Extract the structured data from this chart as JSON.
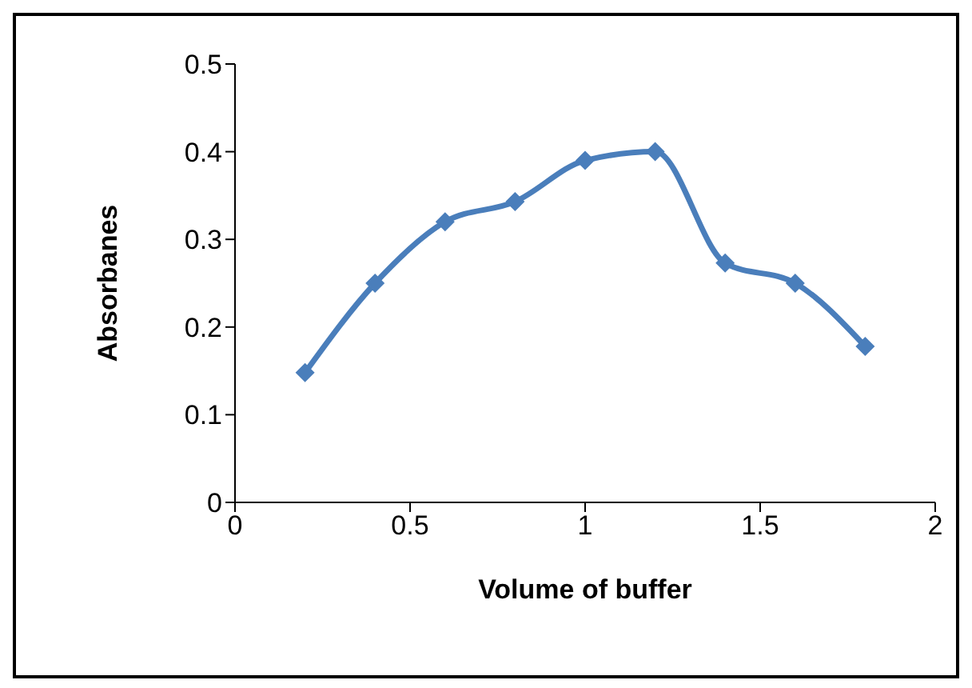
{
  "chart_data": {
    "type": "line",
    "xlabel": "Volume of buffer",
    "ylabel": "Absorbanes",
    "x": [
      0.2,
      0.4,
      0.6,
      0.8,
      1.0,
      1.2,
      1.4,
      1.6,
      1.8
    ],
    "series": [
      {
        "color": "#4a7ebb",
        "values": [
          0.148,
          0.25,
          0.32,
          0.343,
          0.39,
          0.4,
          0.273,
          0.25,
          0.178
        ]
      }
    ],
    "xlim": [
      0,
      2
    ],
    "xticks": [
      0,
      0.5,
      1,
      1.5,
      2
    ],
    "ylim": [
      0,
      0.5
    ],
    "yticks": [
      0,
      0.1,
      0.2,
      0.3,
      0.4,
      0.5
    ],
    "grid": false,
    "legend": false,
    "marker": "diamond",
    "line_style": "solid"
  }
}
